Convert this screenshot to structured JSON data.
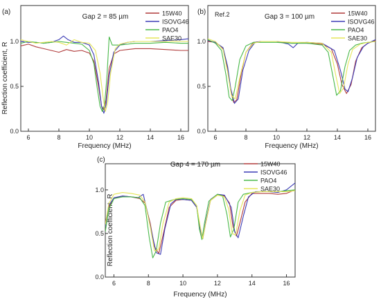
{
  "figure": {
    "colors": {
      "15W40": "#b03a3a",
      "ISOVG46": "#3b3bb5",
      "PAO4": "#48b848",
      "SAE30": "#e6e65a",
      "axis": "#333333",
      "text": "#222222"
    }
  },
  "chart_data": [
    {
      "id": "a",
      "type": "line",
      "panel_label": "(a)",
      "title": "Gap 2 = 85 µm",
      "xlabel": "Frequency (MHz)",
      "ylabel": "Reflection coefficient, R",
      "xlim": [
        5.5,
        16.5
      ],
      "ylim": [
        0,
        1.4
      ],
      "xticks": [
        6,
        8,
        10,
        12,
        14,
        16
      ],
      "yticks": [
        0.0,
        0.5,
        1.0
      ],
      "ytick_labels": [
        "0.0",
        "0.5",
        "1.0"
      ],
      "grid": false,
      "legend_position": "top-right",
      "series": [
        {
          "name": "15W40",
          "color_key": "15W40",
          "x": [
            5.5,
            6.0,
            6.5,
            7.0,
            7.5,
            8.0,
            8.5,
            9.0,
            9.5,
            10.0,
            10.3,
            10.6,
            10.8,
            10.95,
            11.1,
            11.3,
            11.6,
            12.0,
            12.5,
            13.0,
            14.0,
            15.0,
            16.0,
            16.5
          ],
          "y": [
            0.95,
            0.97,
            0.94,
            0.92,
            0.9,
            0.88,
            0.91,
            0.89,
            0.9,
            0.87,
            0.78,
            0.5,
            0.28,
            0.24,
            0.35,
            0.7,
            0.86,
            0.9,
            0.91,
            0.92,
            0.92,
            0.91,
            0.9,
            0.9
          ]
        },
        {
          "name": "ISOVG46",
          "color_key": "ISOVG46",
          "x": [
            5.5,
            6.0,
            6.5,
            7.0,
            7.5,
            8.0,
            8.3,
            8.6,
            9.0,
            9.5,
            10.0,
            10.3,
            10.6,
            10.8,
            10.95,
            11.1,
            11.3,
            11.6,
            12.0,
            12.5,
            13.0,
            14.0,
            15.0,
            16.0,
            16.5
          ],
          "y": [
            1.0,
            0.99,
            0.99,
            0.98,
            0.99,
            1.02,
            1.06,
            1.02,
            0.99,
            0.99,
            0.96,
            0.85,
            0.55,
            0.28,
            0.2,
            0.3,
            0.62,
            0.88,
            0.96,
            0.99,
            1.0,
            1.0,
            1.01,
            1.02,
            1.03
          ]
        },
        {
          "name": "PAO4",
          "color_key": "PAO4",
          "x": [
            5.5,
            6.0,
            6.5,
            7.0,
            7.5,
            8.0,
            8.5,
            9.0,
            9.5,
            10.0,
            10.3,
            10.5,
            10.7,
            10.85,
            11.0,
            11.15,
            11.3,
            11.5,
            12.0,
            12.5,
            13.0,
            14.0,
            15.0,
            16.0,
            16.5
          ],
          "y": [
            0.98,
            1.0,
            0.99,
            0.98,
            0.99,
            1.0,
            0.99,
            0.98,
            0.97,
            0.9,
            0.75,
            0.5,
            0.28,
            0.22,
            0.3,
            0.6,
            1.05,
            0.96,
            0.96,
            0.97,
            0.98,
            0.98,
            0.99,
            0.98,
            0.98
          ]
        },
        {
          "name": "SAE30",
          "color_key": "SAE30",
          "x": [
            5.5,
            6.0,
            6.5,
            7.0,
            7.5,
            8.0,
            8.5,
            9.0,
            9.5,
            10.0,
            10.4,
            10.7,
            10.9,
            11.05,
            11.2,
            11.4,
            11.7,
            12.0,
            12.5,
            13.0,
            14.0,
            15.0,
            16.0,
            16.5
          ],
          "y": [
            1.02,
            1.0,
            0.98,
            0.99,
            1.0,
            0.99,
            0.96,
            1.02,
            0.99,
            0.98,
            0.9,
            0.65,
            0.38,
            0.22,
            0.32,
            0.65,
            0.92,
            0.97,
            0.99,
            1.0,
            1.0,
            1.0,
            1.0,
            1.0
          ]
        }
      ]
    },
    {
      "id": "b",
      "type": "line",
      "panel_label": "(b)",
      "annotation": "Ref.2",
      "title": "Gap 3 = 100 µm",
      "xlabel": "Frequency (MHz)",
      "ylabel": "",
      "xlim": [
        5.5,
        16.5
      ],
      "ylim": [
        0,
        1.4
      ],
      "xticks": [
        6,
        8,
        10,
        12,
        14,
        16
      ],
      "yticks": [
        0.0,
        0.5,
        1.0
      ],
      "ytick_labels": [
        "0.0",
        "0.5",
        "1.0"
      ],
      "grid": false,
      "legend_position": "top-right",
      "series": [
        {
          "name": "15W40",
          "color_key": "15W40",
          "x": [
            5.5,
            6.0,
            6.5,
            6.8,
            7.0,
            7.2,
            7.4,
            7.7,
            8.0,
            8.5,
            9.0,
            10.0,
            11.0,
            12.0,
            13.0,
            13.6,
            14.0,
            14.3,
            14.6,
            14.9,
            15.2,
            15.6,
            16.0,
            16.5
          ],
          "y": [
            1.0,
            0.99,
            0.92,
            0.7,
            0.45,
            0.32,
            0.35,
            0.65,
            0.88,
            0.99,
            1.0,
            1.0,
            0.98,
            0.98,
            0.97,
            0.92,
            0.75,
            0.52,
            0.42,
            0.52,
            0.78,
            0.93,
            0.98,
            1.01
          ]
        },
        {
          "name": "ISOVG46",
          "color_key": "ISOVG46",
          "x": [
            5.5,
            6.0,
            6.5,
            6.8,
            7.0,
            7.25,
            7.5,
            7.8,
            8.2,
            8.6,
            9.0,
            10.0,
            10.8,
            11.1,
            11.4,
            12.0,
            13.0,
            13.8,
            14.2,
            14.5,
            14.7,
            15.0,
            15.3,
            15.7,
            16.0,
            16.5
          ],
          "y": [
            1.01,
            0.99,
            0.93,
            0.72,
            0.48,
            0.31,
            0.36,
            0.68,
            0.9,
            0.99,
            1.0,
            1.0,
            0.97,
            0.93,
            0.98,
            0.99,
            0.98,
            0.9,
            0.68,
            0.47,
            0.44,
            0.6,
            0.82,
            0.94,
            0.98,
            1.02
          ]
        },
        {
          "name": "PAO4",
          "color_key": "PAO4",
          "x": [
            5.5,
            6.0,
            6.4,
            6.7,
            6.9,
            7.1,
            7.3,
            7.6,
            8.0,
            8.5,
            9.0,
            10.0,
            11.0,
            12.0,
            13.0,
            13.4,
            13.7,
            13.95,
            14.2,
            14.5,
            14.8,
            15.2,
            15.6,
            16.0,
            16.5
          ],
          "y": [
            1.02,
            0.98,
            0.9,
            0.62,
            0.38,
            0.34,
            0.5,
            0.8,
            0.95,
            0.99,
            0.99,
            0.99,
            0.98,
            0.98,
            0.96,
            0.88,
            0.62,
            0.4,
            0.45,
            0.72,
            0.9,
            0.96,
            0.98,
            0.99,
            1.0
          ]
        },
        {
          "name": "SAE30",
          "color_key": "SAE30",
          "x": [
            5.5,
            6.0,
            6.5,
            6.8,
            7.05,
            7.3,
            7.6,
            8.0,
            8.5,
            9.0,
            10.0,
            11.0,
            12.0,
            13.0,
            13.6,
            13.9,
            14.15,
            14.4,
            14.7,
            15.0,
            15.5,
            16.0,
            16.5
          ],
          "y": [
            1.03,
            1.0,
            0.91,
            0.66,
            0.4,
            0.36,
            0.6,
            0.88,
            0.98,
            1.0,
            1.0,
            0.99,
            0.99,
            0.98,
            0.88,
            0.62,
            0.42,
            0.48,
            0.75,
            0.91,
            0.97,
            0.99,
            1.0
          ]
        }
      ]
    },
    {
      "id": "c",
      "type": "line",
      "panel_label": "(c)",
      "title": "Gap 4 = 170 µm",
      "xlabel": "Frequency (MHz)",
      "ylabel": "Reflection coefficient, R",
      "xlim": [
        5.5,
        16.5
      ],
      "ylim": [
        0,
        1.3
      ],
      "xticks": [
        6,
        8,
        10,
        12,
        14,
        16
      ],
      "yticks": [
        0.0,
        0.5,
        1.0
      ],
      "ytick_labels": [
        "0.0",
        "0.5",
        "1.0"
      ],
      "grid": false,
      "legend_position": "top-right",
      "series": [
        {
          "name": "15W40",
          "color_key": "15W40",
          "x": [
            5.5,
            5.7,
            6.0,
            6.5,
            7.0,
            7.5,
            7.8,
            8.1,
            8.35,
            8.6,
            8.85,
            9.2,
            9.6,
            10.0,
            10.5,
            10.8,
            11.0,
            11.15,
            11.3,
            11.6,
            12.0,
            12.4,
            12.7,
            12.9,
            13.1,
            13.3,
            13.6,
            14.0,
            14.5,
            15.0,
            15.5,
            16.0,
            16.5
          ],
          "y": [
            0.62,
            0.8,
            0.9,
            0.93,
            0.92,
            0.9,
            0.85,
            0.62,
            0.35,
            0.27,
            0.48,
            0.8,
            0.88,
            0.89,
            0.88,
            0.8,
            0.55,
            0.44,
            0.6,
            0.88,
            0.94,
            0.93,
            0.85,
            0.58,
            0.47,
            0.62,
            0.86,
            0.96,
            0.96,
            0.96,
            0.95,
            0.96,
            1.0
          ]
        },
        {
          "name": "ISOVG46",
          "color_key": "ISOVG46",
          "x": [
            5.5,
            5.7,
            6.0,
            6.5,
            7.0,
            7.4,
            7.7,
            7.9,
            8.2,
            8.45,
            8.7,
            8.95,
            9.3,
            9.6,
            10.0,
            10.5,
            10.8,
            11.0,
            11.15,
            11.3,
            11.6,
            12.0,
            12.4,
            12.8,
            13.0,
            13.2,
            13.5,
            13.8,
            14.2,
            15.0,
            15.5,
            16.0,
            16.5
          ],
          "y": [
            0.58,
            0.82,
            0.91,
            0.93,
            0.92,
            0.91,
            0.95,
            0.78,
            0.5,
            0.28,
            0.26,
            0.55,
            0.84,
            0.89,
            0.89,
            0.88,
            0.8,
            0.55,
            0.44,
            0.62,
            0.89,
            0.95,
            0.94,
            0.8,
            0.52,
            0.45,
            0.7,
            0.92,
            0.98,
            0.98,
            0.97,
            1.0,
            1.08
          ]
        },
        {
          "name": "PAO4",
          "color_key": "PAO4",
          "x": [
            5.5,
            5.7,
            6.0,
            6.5,
            7.0,
            7.5,
            7.8,
            8.05,
            8.25,
            8.45,
            8.7,
            9.0,
            9.5,
            10.0,
            10.5,
            10.8,
            10.95,
            11.1,
            11.25,
            11.5,
            12.0,
            12.3,
            12.55,
            12.75,
            12.95,
            13.2,
            13.5,
            14.0,
            14.5,
            15.0,
            15.5,
            16.0,
            16.5
          ],
          "y": [
            0.52,
            0.78,
            0.9,
            0.92,
            0.92,
            0.91,
            0.82,
            0.45,
            0.22,
            0.3,
            0.62,
            0.86,
            0.89,
            0.9,
            0.89,
            0.82,
            0.55,
            0.43,
            0.62,
            0.87,
            0.95,
            0.93,
            0.72,
            0.46,
            0.55,
            0.86,
            0.95,
            0.97,
            0.98,
            0.98,
            0.98,
            0.99,
            1.0
          ]
        },
        {
          "name": "SAE30",
          "color_key": "SAE30",
          "x": [
            5.5,
            5.7,
            6.0,
            6.5,
            7.0,
            7.5,
            7.8,
            8.1,
            8.35,
            8.6,
            8.85,
            9.2,
            9.6,
            10.0,
            10.5,
            10.8,
            11.0,
            11.15,
            11.3,
            11.6,
            12.0,
            12.4,
            12.65,
            12.85,
            13.05,
            13.3,
            13.6,
            14.0,
            14.5,
            15.0,
            15.5,
            16.0,
            16.5
          ],
          "y": [
            0.6,
            0.84,
            0.95,
            0.97,
            0.96,
            0.94,
            0.86,
            0.58,
            0.3,
            0.32,
            0.62,
            0.86,
            0.9,
            0.91,
            0.9,
            0.82,
            0.58,
            0.44,
            0.6,
            0.88,
            0.94,
            0.92,
            0.78,
            0.5,
            0.48,
            0.76,
            0.94,
            0.97,
            0.98,
            0.98,
            0.98,
            0.98,
            0.99
          ]
        }
      ]
    }
  ]
}
